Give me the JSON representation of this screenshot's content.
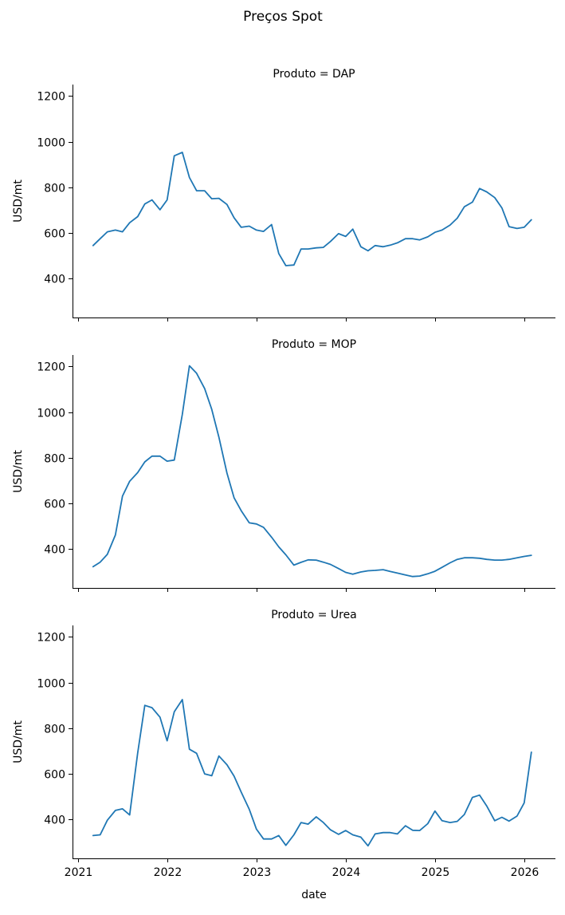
{
  "chart_data": {
    "type": "line",
    "title": "Preços Spot",
    "xlabel": "date",
    "ylabel": "USD/mt",
    "ylim": [
      230,
      1250
    ],
    "yticks": [
      400,
      600,
      800,
      1000,
      1200
    ],
    "xlim": [
      2020.94,
      2026.35
    ],
    "xticks": [
      2021,
      2022,
      2023,
      2024,
      2025,
      2026
    ],
    "xtick_labels": [
      "2021",
      "2022",
      "2023",
      "2024",
      "2025",
      "2026"
    ],
    "facets": [
      {
        "title": "Produto = DAP",
        "values": [
          545,
          575,
          605,
          613,
          605,
          645,
          672,
          727,
          745,
          702,
          745,
          938,
          953,
          843,
          785,
          785,
          750,
          752,
          725,
          667,
          625,
          630,
          613,
          607,
          637,
          510,
          457,
          460,
          530,
          530,
          535,
          537,
          563,
          597,
          585,
          617,
          540,
          522,
          545,
          540,
          547,
          557,
          575,
          575,
          570,
          583,
          603,
          613,
          635,
          665,
          715,
          735,
          795,
          780,
          755,
          710,
          628,
          620,
          625,
          658
        ]
      },
      {
        "title": "Produto = MOP",
        "values": [
          323,
          343,
          377,
          462,
          632,
          697,
          735,
          782,
          807,
          807,
          785,
          790,
          990,
          1203,
          1170,
          1103,
          1012,
          890,
          733,
          625,
          568,
          515,
          510,
          495,
          452,
          410,
          375,
          330,
          342,
          353,
          352,
          343,
          333,
          315,
          298,
          290,
          300,
          305,
          307,
          310,
          302,
          295,
          287,
          280,
          282,
          292,
          303,
          320,
          340,
          355,
          362,
          362,
          360,
          355,
          352,
          352,
          355,
          362,
          368,
          373
        ]
      },
      {
        "title": "Produto = Urea",
        "values": [
          330,
          333,
          397,
          440,
          447,
          420,
          692,
          900,
          890,
          848,
          745,
          872,
          925,
          708,
          690,
          600,
          592,
          678,
          640,
          590,
          520,
          445,
          358,
          315,
          315,
          330,
          287,
          333,
          387,
          380,
          412,
          387,
          355,
          335,
          352,
          333,
          323,
          285,
          337,
          343,
          343,
          337,
          373,
          353,
          352,
          382,
          437,
          395,
          387,
          392,
          422,
          497,
          507,
          460,
          395,
          410,
          393,
          415,
          473,
          695
        ]
      }
    ],
    "x": [
      2021.17,
      2021.25,
      2021.33,
      2021.42,
      2021.5,
      2021.58,
      2021.67,
      2021.75,
      2021.83,
      2021.92,
      2022.0,
      2022.08,
      2022.17,
      2022.25,
      2022.33,
      2022.42,
      2022.5,
      2022.58,
      2022.67,
      2022.75,
      2022.83,
      2022.92,
      2023.0,
      2023.08,
      2023.17,
      2023.25,
      2023.33,
      2023.42,
      2023.5,
      2023.58,
      2023.67,
      2023.75,
      2023.83,
      2023.92,
      2024.0,
      2024.08,
      2024.17,
      2024.25,
      2024.33,
      2024.42,
      2024.5,
      2024.58,
      2024.67,
      2024.75,
      2024.83,
      2024.92,
      2025.0,
      2025.08,
      2025.17,
      2025.25,
      2025.33,
      2025.42,
      2025.5,
      2025.58,
      2025.67,
      2025.75,
      2025.83,
      2025.92,
      2026.0,
      2026.08
    ]
  }
}
